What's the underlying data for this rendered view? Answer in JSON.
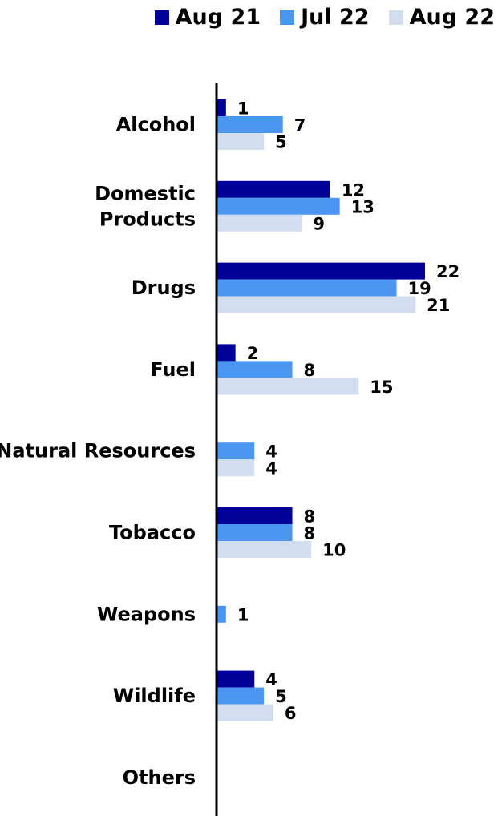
{
  "chart_data": {
    "type": "bar",
    "orientation": "horizontal",
    "categories": [
      "Alcohol",
      "Domestic Products",
      "Drugs",
      "Fuel",
      "Natural Resources",
      "Tobacco",
      "Weapons",
      "Wildlife",
      "Others"
    ],
    "category_lines": [
      [
        "Alcohol"
      ],
      [
        "Domestic",
        "Products"
      ],
      [
        "Drugs"
      ],
      [
        "Fuel"
      ],
      [
        "Natural Resources"
      ],
      [
        "Tobacco"
      ],
      [
        "Weapons"
      ],
      [
        "Wildlife"
      ],
      [
        "Others"
      ]
    ],
    "series": [
      {
        "name": "Aug 21",
        "color": "#000099",
        "values": [
          1,
          12,
          22,
          2,
          null,
          8,
          null,
          4,
          null
        ]
      },
      {
        "name": "Jul 22",
        "color": "#4a96f0",
        "values": [
          7,
          13,
          19,
          8,
          4,
          8,
          1,
          5,
          null
        ]
      },
      {
        "name": "Aug 22",
        "color": "#d3ddf0",
        "values": [
          5,
          9,
          21,
          15,
          4,
          10,
          null,
          6,
          null
        ]
      }
    ],
    "xlim": [
      0,
      22
    ],
    "legend_position": "top-right",
    "grid": false
  }
}
